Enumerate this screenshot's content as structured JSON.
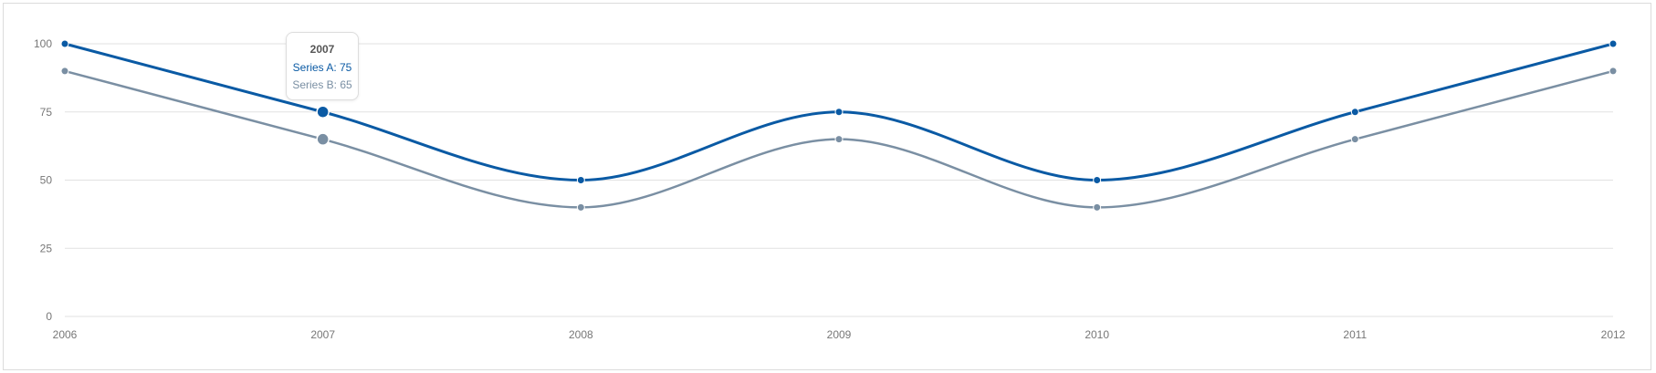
{
  "colors": {
    "series_a": "#0a5aa4",
    "series_b": "#7a8fa3",
    "grid": "#e2e2e2",
    "axis_text": "#777777"
  },
  "chart_data": {
    "type": "line",
    "title": "",
    "xlabel": "",
    "ylabel": "",
    "x": [
      "2006",
      "2007",
      "2008",
      "2009",
      "2010",
      "2011",
      "2012"
    ],
    "series": [
      {
        "name": "Series A",
        "values": [
          100,
          75,
          50,
          75,
          50,
          75,
          100
        ]
      },
      {
        "name": "Series B",
        "values": [
          90,
          65,
          40,
          65,
          40,
          65,
          90
        ]
      }
    ],
    "ylim": [
      0,
      100
    ],
    "yticks": [
      "0",
      "25",
      "50",
      "75",
      "100"
    ],
    "grid": true,
    "legend": "none",
    "curve": "smooth"
  },
  "tooltip": {
    "title": "2007",
    "rows": [
      {
        "label": "Series A: 75"
      },
      {
        "label": "Series B: 65"
      }
    ]
  }
}
